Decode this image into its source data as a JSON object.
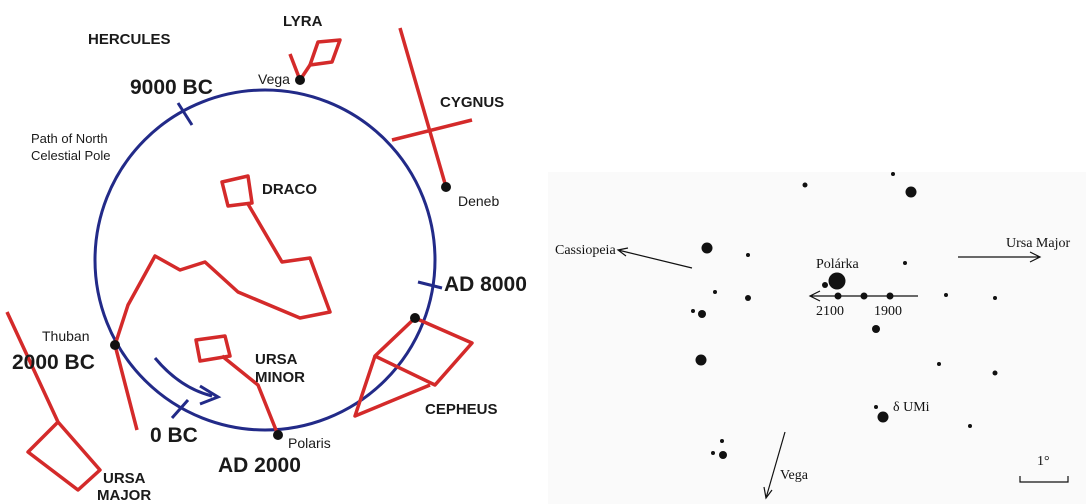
{
  "left_diagram": {
    "labels": [
      "HERCULES",
      "LYRA",
      "Vega",
      "9000 BC",
      "CYGNUS",
      "Path of North",
      "Celestial Pole",
      "DRACO",
      "Deneb",
      "AD 8000",
      "Thuban",
      "2000 BC",
      "URSA",
      "MINOR",
      "CEPHEUS",
      "0 BC",
      "Polaris",
      "AD 2000",
      "URSA",
      "MAJOR"
    ]
  },
  "right_diagram": {
    "labels": [
      "Cassiopeia",
      "Ursa Major",
      "Polárka",
      "2100",
      "1900",
      "δ UMi",
      "Vega",
      "1°"
    ]
  }
}
